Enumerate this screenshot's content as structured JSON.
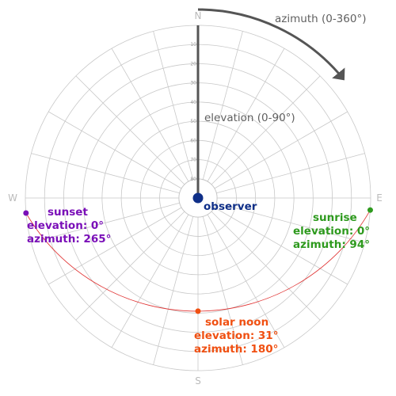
{
  "cardinals": {
    "north": "N",
    "east": "E",
    "south": "S",
    "west": "W"
  },
  "elevation_ring_labels": [
    "10",
    "20",
    "30",
    "40",
    "50",
    "60",
    "70",
    "80"
  ],
  "labels": {
    "azimuth_axis": "azimuth (0-360°)",
    "elevation_axis": "elevation (0-90°)",
    "observer": "observer"
  },
  "sun_positions": [
    {
      "name": "sunrise",
      "elevation": "elevation: 0°",
      "azimuth": "azimuth: 94°",
      "elevation_deg": 0,
      "azimuth_deg": 94
    },
    {
      "name": "sunset",
      "elevation": "elevation: 0°",
      "azimuth": "azimuth: 265°",
      "elevation_deg": 0,
      "azimuth_deg": 265
    },
    {
      "name": "solar noon",
      "elevation": "elevation: 31°",
      "azimuth": "azimuth: 180°",
      "elevation_deg": 31,
      "azimuth_deg": 180
    }
  ],
  "colors": {
    "sunrise": "#2e9a1e",
    "sunset": "#7a0fb8",
    "solar_noon": "#f05012",
    "observer": "#0f2f88",
    "sun_path": "#e03030",
    "arrow": "#555555",
    "grid": "#c8c8c8"
  }
}
